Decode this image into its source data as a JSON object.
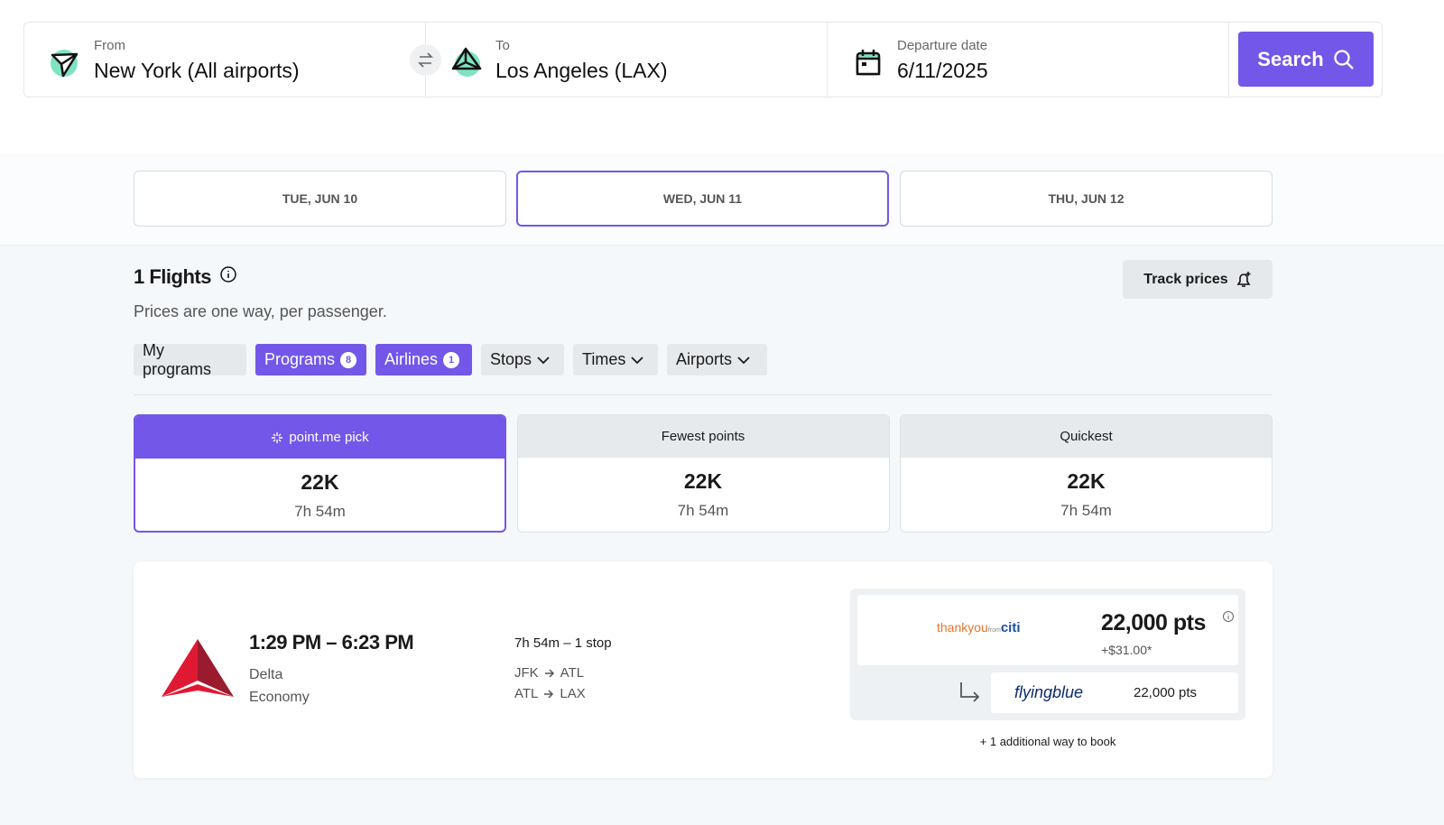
{
  "search": {
    "from_label": "From",
    "from": "New York (All airports)",
    "to_label": "To",
    "to": "Los Angeles (LAX)",
    "date_label": "Departure date",
    "date": "6/11/2025",
    "button": "Search"
  },
  "dates": [
    "TUE, JUN 10",
    "WED, JUN 11",
    "THU, JUN 12"
  ],
  "results": {
    "title": "1 Flights",
    "subtitle": "Prices are one way, per passenger.",
    "track": "Track prices"
  },
  "filters": [
    {
      "label": "My programs"
    },
    {
      "label": "Programs",
      "badge": 8
    },
    {
      "label": "Airlines",
      "badge": 1
    },
    {
      "label": "Stops"
    },
    {
      "label": "Times"
    },
    {
      "label": "Airports"
    }
  ],
  "picks": [
    {
      "label": "point.me pick",
      "points": "22K",
      "duration": "7h 54m"
    },
    {
      "label": "Fewest points",
      "points": "22K",
      "duration": "7h 54m"
    },
    {
      "label": "Quickest",
      "points": "22K",
      "duration": "7h 54m"
    }
  ],
  "flight": {
    "times": "1:29 PM – 6:23 PM",
    "airline": "Delta",
    "cabin": "Economy",
    "summary": "7h 54m – 1 stop",
    "segments": [
      [
        "JFK",
        "ATL"
      ],
      [
        "ATL",
        "LAX"
      ]
    ],
    "program_logo": [
      "thankyou",
      "from",
      "citi"
    ],
    "points": "22,000 pts",
    "fees": "+$31.00*",
    "transfer_logo": "flyingblue",
    "transfer_points": "22,000 pts",
    "more": "+ 1 additional way to book"
  }
}
